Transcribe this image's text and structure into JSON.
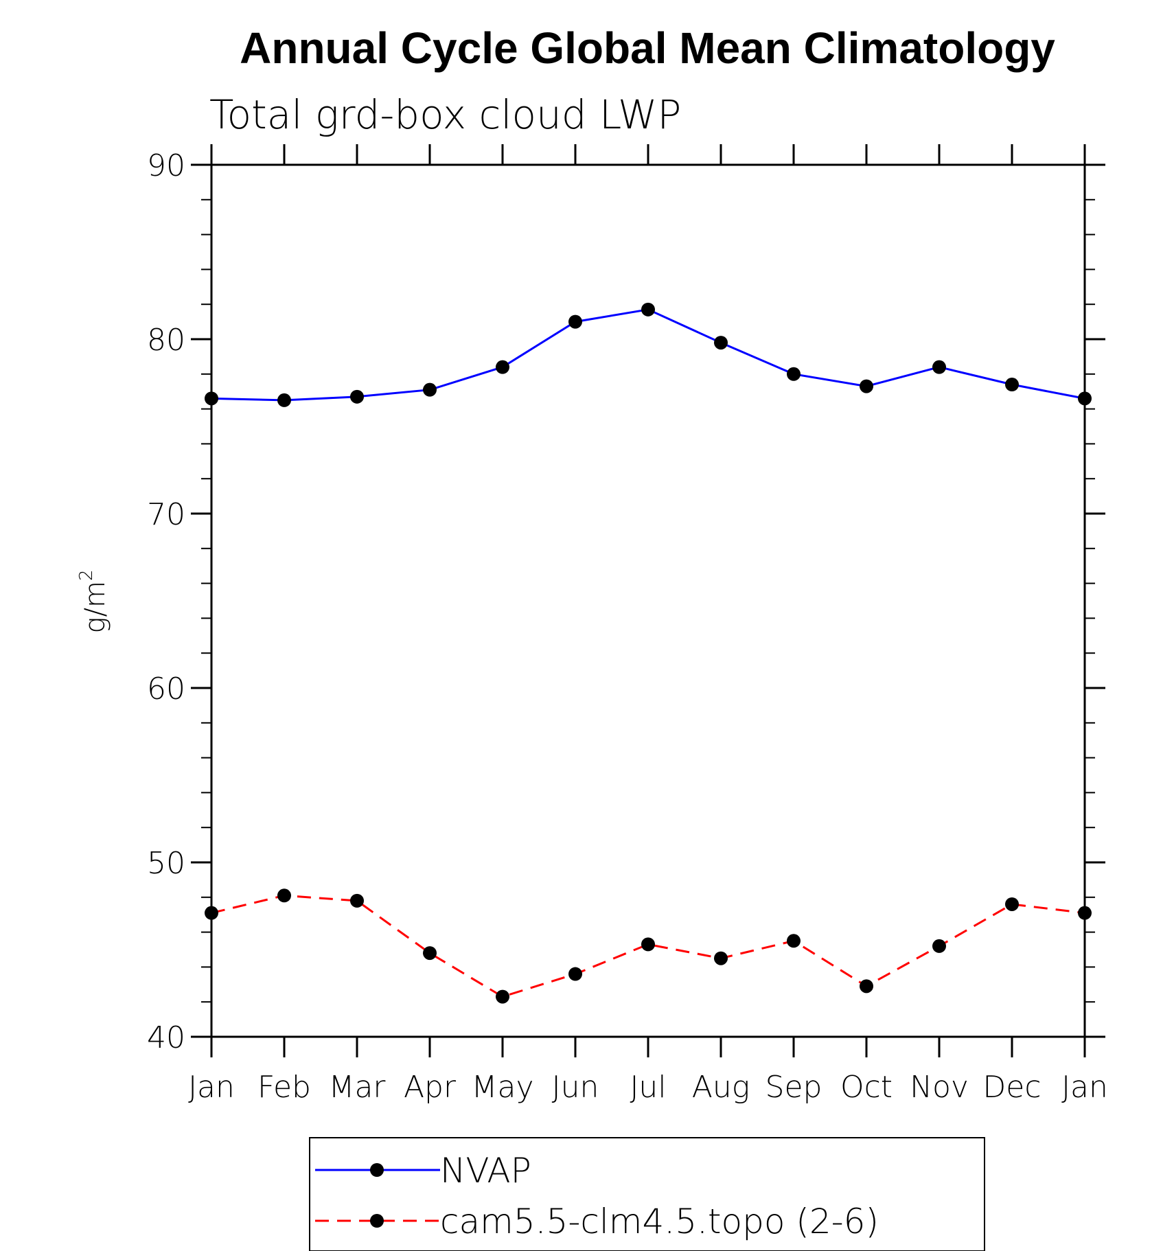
{
  "chart_data": {
    "type": "line",
    "title": "Annual Cycle Global Mean Climatology",
    "subtitle": "Total grd-box cloud LWP",
    "ylabel": "g/m",
    "ylabel_superscript": "2",
    "xlabel": "",
    "categories": [
      "Jan",
      "Feb",
      "Mar",
      "Apr",
      "May",
      "Jun",
      "Jul",
      "Aug",
      "Sep",
      "Oct",
      "Nov",
      "Dec",
      "Jan"
    ],
    "ylim": [
      40,
      90
    ],
    "yticks": [
      40,
      50,
      60,
      70,
      80,
      90
    ],
    "y_minor_step": 2,
    "grid": false,
    "legend_position": "bottom",
    "series": [
      {
        "name": "NVAP",
        "color": "#0000ff",
        "line_style": "solid",
        "marker": "filled-circle",
        "values": [
          76.6,
          76.5,
          76.7,
          77.1,
          78.4,
          81.0,
          81.7,
          79.8,
          78.0,
          77.3,
          78.4,
          77.4,
          76.6
        ]
      },
      {
        "name": "cam5.5-clm4.5.topo (2-6)",
        "color": "#ff0000",
        "line_style": "dashed",
        "marker": "filled-circle",
        "values": [
          47.1,
          48.1,
          47.8,
          44.8,
          42.3,
          43.6,
          45.3,
          44.5,
          45.5,
          42.9,
          45.2,
          47.6,
          47.1
        ]
      }
    ]
  }
}
